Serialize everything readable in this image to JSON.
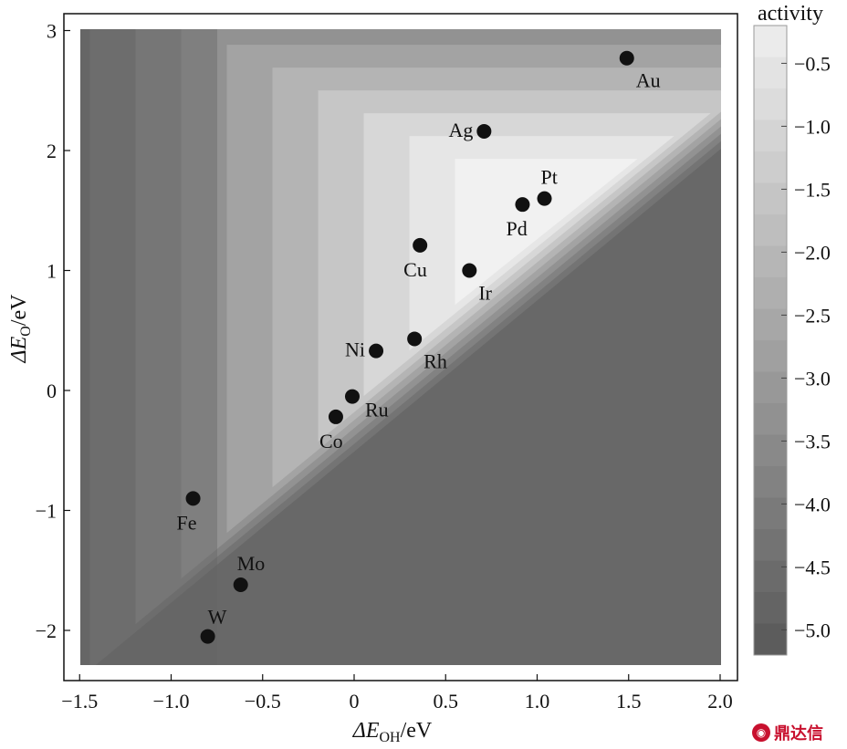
{
  "chart_data": {
    "type": "contour",
    "xlabel": {
      "main": "ΔE",
      "sub": "OH",
      "unit": "/eV"
    },
    "ylabel": {
      "main": "ΔE",
      "sub": "O",
      "unit": "/eV"
    },
    "xlim": [
      -1.5,
      2.0
    ],
    "ylim": [
      -2.3,
      3.0
    ],
    "xticks": [
      {
        "v": -1.5,
        "label": "−1.5"
      },
      {
        "v": -1.0,
        "label": "−1.0"
      },
      {
        "v": -0.5,
        "label": "−0.5"
      },
      {
        "v": 0,
        "label": "0"
      },
      {
        "v": 0.5,
        "label": "0.5"
      },
      {
        "v": 1.0,
        "label": "1.0"
      },
      {
        "v": 1.5,
        "label": "1.5"
      },
      {
        "v": 2.0,
        "label": "2.0"
      }
    ],
    "yticks": [
      {
        "v": -2,
        "label": "−2"
      },
      {
        "v": -1,
        "label": "−1"
      },
      {
        "v": 0,
        "label": "0"
      },
      {
        "v": 1,
        "label": "1"
      },
      {
        "v": 2,
        "label": "2"
      },
      {
        "v": 3,
        "label": "3"
      }
    ],
    "colorbar": {
      "title": "activity",
      "range": [
        -5.2,
        -0.2
      ],
      "ticks": [
        {
          "v": -0.5,
          "label": "−0.5"
        },
        {
          "v": -1.0,
          "label": "−1.0"
        },
        {
          "v": -1.5,
          "label": "−1.5"
        },
        {
          "v": -2.0,
          "label": "−2.0"
        },
        {
          "v": -2.5,
          "label": "−2.5"
        },
        {
          "v": -3.0,
          "label": "−3.0"
        },
        {
          "v": -3.5,
          "label": "−3.5"
        },
        {
          "v": -4.0,
          "label": "−4.0"
        },
        {
          "v": -4.5,
          "label": "−4.5"
        },
        {
          "v": -5.0,
          "label": "−5.0"
        }
      ]
    },
    "contour_peak": {
      "x": 1.05,
      "y": 1.55
    },
    "contour_levels": [
      {
        "level": -0.5,
        "color": "#f1f1f1"
      },
      {
        "level": -0.75,
        "color": "#e6e6e6"
      },
      {
        "level": -1.0,
        "color": "#d7d7d7"
      },
      {
        "level": -1.25,
        "color": "#c6c6c6"
      },
      {
        "level": -1.5,
        "color": "#b4b4b4"
      },
      {
        "level": -1.75,
        "color": "#a3a3a3"
      },
      {
        "level": -2.0,
        "color": "#929292"
      },
      {
        "level": -2.25,
        "color": "#828282"
      },
      {
        "level": -2.5,
        "color": "#747474"
      },
      {
        "level": -5.2,
        "color": "#686868"
      }
    ],
    "points": [
      {
        "name": "Au",
        "x": 1.49,
        "y": 2.77,
        "label_pos": "below-right"
      },
      {
        "name": "Ag",
        "x": 0.71,
        "y": 2.16,
        "label_pos": "left"
      },
      {
        "name": "Pt",
        "x": 1.04,
        "y": 1.6,
        "label_pos": "above"
      },
      {
        "name": "Pd",
        "x": 0.92,
        "y": 1.55,
        "label_pos": "below"
      },
      {
        "name": "Cu",
        "x": 0.36,
        "y": 1.21,
        "label_pos": "below"
      },
      {
        "name": "Ir",
        "x": 0.63,
        "y": 1.0,
        "label_pos": "below-right"
      },
      {
        "name": "Ni",
        "x": 0.12,
        "y": 0.33,
        "label_pos": "left"
      },
      {
        "name": "Rh",
        "x": 0.33,
        "y": 0.43,
        "label_pos": "below-right"
      },
      {
        "name": "Ru",
        "x": -0.01,
        "y": -0.05,
        "label_pos": "right"
      },
      {
        "name": "Co",
        "x": -0.1,
        "y": -0.22,
        "label_pos": "below"
      },
      {
        "name": "Fe",
        "x": -0.88,
        "y": -0.9,
        "label_pos": "below"
      },
      {
        "name": "Mo",
        "x": -0.62,
        "y": -1.62,
        "label_pos": "above"
      },
      {
        "name": "W",
        "x": -0.8,
        "y": -2.05,
        "label_pos": "above-right"
      }
    ]
  },
  "watermark": {
    "text": "鼎达信"
  }
}
